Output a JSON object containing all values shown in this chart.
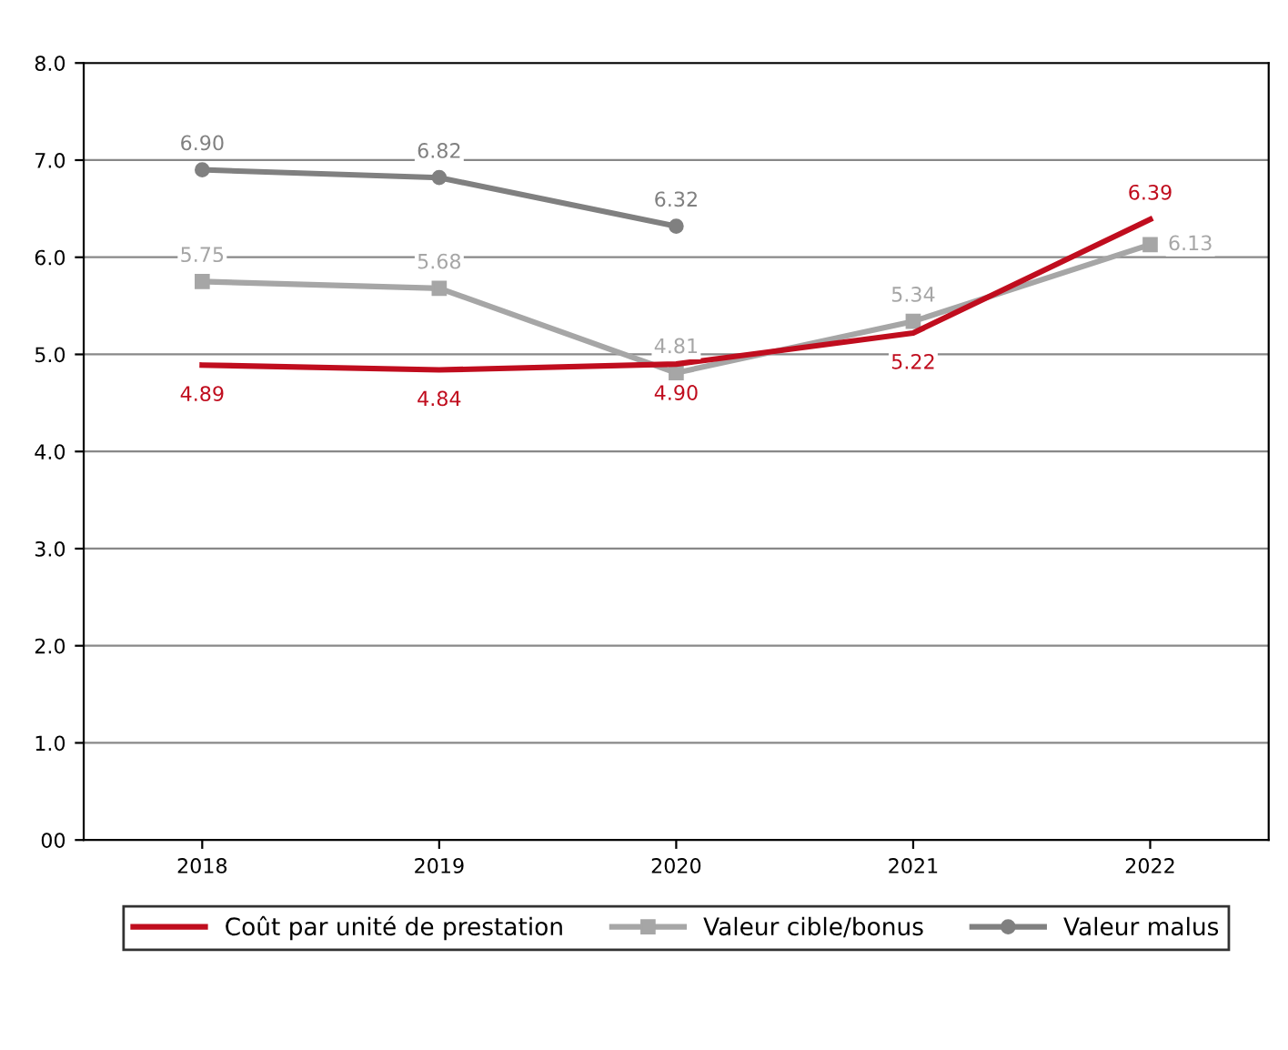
{
  "chart_data": {
    "type": "line",
    "categories": [
      "2018",
      "2019",
      "2020",
      "2021",
      "2022"
    ],
    "series": [
      {
        "name": "Coût par unité de prestation",
        "color": "#c00d1e",
        "values": [
          4.89,
          4.84,
          4.9,
          5.22,
          6.39
        ],
        "value_labels": [
          "4.89",
          "4.84",
          "4.90",
          "5.22",
          "6.39"
        ],
        "marker": "none"
      },
      {
        "name": "Valeur cible/bonus",
        "color": "#a6a6a6",
        "values": [
          5.75,
          5.68,
          4.81,
          5.34,
          6.13
        ],
        "value_labels": [
          "5.75",
          "5.68",
          "4.81",
          "5.34",
          "6.13"
        ],
        "marker": "square"
      },
      {
        "name": "Valeur malus",
        "color": "#808080",
        "values": [
          6.9,
          6.82,
          6.32,
          null,
          null
        ],
        "value_labels": [
          "6.90",
          "6.82",
          "6.32",
          null,
          null
        ],
        "marker": "circle"
      }
    ],
    "ylim": [
      0,
      8
    ],
    "yticks": [
      {
        "value": 0,
        "label": "00"
      },
      {
        "value": 1,
        "label": "1.0"
      },
      {
        "value": 2,
        "label": "2.0"
      },
      {
        "value": 3,
        "label": "3.0"
      },
      {
        "value": 4,
        "label": "4.0"
      },
      {
        "value": 5,
        "label": "5.0"
      },
      {
        "value": 6,
        "label": "6.0"
      },
      {
        "value": 7,
        "label": "7.0"
      },
      {
        "value": 8,
        "label": "8.0"
      }
    ],
    "grid": "y",
    "legend": "bottom",
    "line_style": "solid"
  }
}
